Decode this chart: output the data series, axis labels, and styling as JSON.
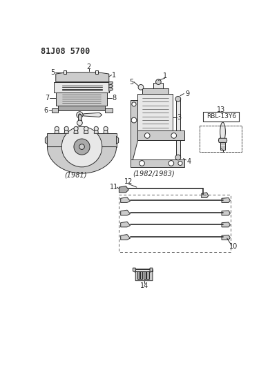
{
  "title": "81J08 5700",
  "bg_color": "#ffffff",
  "fg_color": "#000000",
  "fig_width": 4.04,
  "fig_height": 5.33,
  "dpi": 100,
  "labels": {
    "title": "81J08 5700",
    "year_1981": "(1981)",
    "year_1982": "(1982/1983)",
    "part_13_label": "RBL-13Y6"
  },
  "colors": {
    "line": "#2a2a2a",
    "fill_light": "#e8e8e8",
    "fill_medium": "#cccccc",
    "fill_dark": "#aaaaaa",
    "background": "#ffffff"
  }
}
